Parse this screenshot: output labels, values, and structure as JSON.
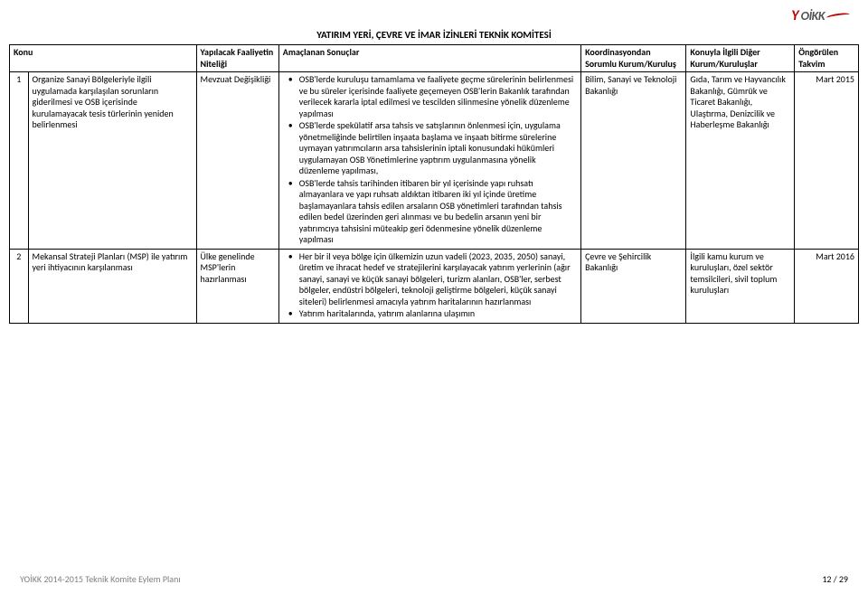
{
  "logo": {
    "y": "Y",
    "oikk": "OİKK"
  },
  "title": "YATIRIM YERİ, ÇEVRE VE İMAR İZİNLERİ TEKNİK KOMİTESİ",
  "headers": {
    "konu": "Konu",
    "nitelik": "Yapılacak Faaliyetin Niteliği",
    "sonuc": "Amaçlanan Sonuçlar",
    "koord": "Koordinasyondan Sorumlu Kurum/Kuruluş",
    "diger": "Konuyla İlgili Diğer Kurum/Kuruluşlar",
    "takvim": "Öngörülen Takvim"
  },
  "rows": [
    {
      "num": "1",
      "konu": "Organize Sanayi Bölgeleriyle ilgili uygulamada karşılaşılan sorunların giderilmesi ve OSB içerisinde kurulamayacak tesis türlerinin yeniden belirlenmesi",
      "nitelik": "Mevzuat Değişikliği",
      "bullets": [
        "OSB'lerde kuruluşu tamamlama ve faaliyete geçme  sürelerinin belirlenmesi ve bu süreler içerisinde faaliyete geçemeyen OSB'lerin Bakanlık tarafından verilecek kararla iptal edilmesi ve tescilden silinmesine yönelik düzenleme yapılması",
        "OSB'lerde spekülatif arsa tahsis ve satışlarının önlenmesi için, uygulama yönetmeliğinde belirtilen inşaata başlama ve inşaatı bitirme sürelerine uymayan yatırımcıların arsa tahsislerinin iptali konusundaki hükümleri uygulamayan OSB Yönetimlerine yaptırım uygulanmasına yönelik düzenleme yapılması,",
        "OSB'lerde tahsis tarihinden itibaren bir yıl içerisinde yapı ruhsatı almayanlara ve yapı ruhsatı aldıktan itibaren iki yıl içinde üretime başlamayanlara tahsis edilen arsaların OSB yönetimleri tarafından tahsis edilen bedel üzerinden geri alınması ve bu bedelin arsanın yeni bir yatırımcıya tahsisini müteakip geri ödenmesine yönelik düzenleme yapılması"
      ],
      "koord": "Bilim, Sanayi ve Teknoloji Bakanlığı",
      "diger": "Gıda, Tarım ve Hayvancılık Bakanlığı, Gümrük ve Ticaret Bakanlığı, Ulaştırma, Denizcilik ve Haberleşme Bakanlığı",
      "takvim": "Mart 2015"
    },
    {
      "num": "2",
      "konu": "Mekansal Strateji Planları (MSP) ile yatırım yeri ihtiyacının karşılanması",
      "nitelik": "Ülke genelinde MSP'lerin hazırlanması",
      "bullets": [
        "Her bir il veya bölge için ülkemizin uzun vadeli (2023, 2035, 2050) sanayi, üretim ve ihracat hedef ve stratejilerini karşılayacak yatırım yerlerinin (ağır sanayi, sanayi ve küçük sanayi bölgeleri, turizm alanları, OSB'ler, serbest bölgeler, endüstri bölgeleri, teknoloji geliştirme bölgeleri, küçük sanayi siteleri) belirlenmesi amacıyla yatırım haritalarının hazırlanması",
        "Yatırım haritalarında, yatırım alanlarına ulaşımın"
      ],
      "koord": "Çevre ve Şehircilik Bakanlığı",
      "diger": "İlgili kamu kurum ve kuruluşları, özel sektör temsilcileri, sivil toplum kuruluşları",
      "takvim": "Mart 2016"
    }
  ],
  "footer": {
    "left": "YOİKK 2014-2015 Teknik Komite Eylem Planı",
    "right": "12 / 29"
  }
}
